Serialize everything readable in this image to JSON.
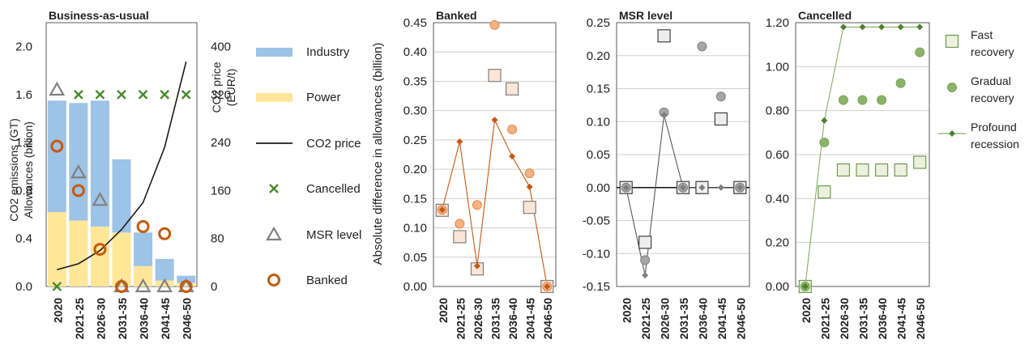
{
  "colors": {
    "industry": "#9dc3e6",
    "power": "#ffe699",
    "co2_price": "#1a1a1a",
    "cancelled": "#4a8a2e",
    "msr_level": "#808080",
    "banked": "#c55a11",
    "banked_light_fill": "#f8cbad",
    "banked_dark": "#c55a11",
    "msr_point": "#a6a6a6",
    "cancel_fast_fill": "#ebf1de",
    "cancel_gradual": "#8cb36a",
    "cancel_profound": "#4f7f2f",
    "grid": "#d0d0d0"
  },
  "chart_data": [
    {
      "type": "bar",
      "title": "Business-as-usual",
      "categories": [
        "2020",
        "2021-25",
        "2026-30",
        "2031-35",
        "2036-40",
        "2041-45",
        "2046-50"
      ],
      "ylabel": "CO2 emissions (GT)\nAllowances (billion)",
      "ylim": [
        0,
        2.2
      ],
      "yticks": [
        "0.0",
        "0.4",
        "0.8",
        "1.2",
        "1.6",
        "2.0"
      ],
      "y2label": "CO2 price (EUR/t)",
      "y2lim": [
        0,
        440
      ],
      "y2ticks": [
        "0",
        "80",
        "160",
        "240",
        "320",
        "400"
      ],
      "stacked": true,
      "series": [
        {
          "name": "Industry",
          "kind": "bar",
          "values": [
            0.93,
            0.98,
            1.05,
            0.61,
            0.28,
            0.18,
            0.06
          ]
        },
        {
          "name": "Power",
          "kind": "bar",
          "values": [
            0.62,
            0.55,
            0.5,
            0.45,
            0.17,
            0.05,
            0.03
          ]
        },
        {
          "name": "CO2 price",
          "kind": "line",
          "axis": "y2",
          "values": [
            28,
            38,
            60,
            95,
            140,
            232,
            375
          ]
        },
        {
          "name": "Cancelled",
          "kind": "marker",
          "values": [
            0.0,
            1.6,
            1.6,
            1.6,
            1.6,
            1.6,
            1.6
          ]
        },
        {
          "name": "MSR level",
          "kind": "marker",
          "values": [
            1.64,
            0.95,
            0.72,
            0.0,
            0.0,
            0.0,
            0.0
          ]
        },
        {
          "name": "Banked",
          "kind": "marker",
          "values": [
            1.17,
            0.8,
            0.31,
            0.0,
            0.5,
            0.44,
            0.0
          ]
        }
      ],
      "legend_position": "right"
    },
    {
      "type": "line",
      "title": "Banked",
      "categories": [
        "2020",
        "2021-25",
        "2026-30",
        "2031-35",
        "2036-40",
        "2041-45",
        "2046-50"
      ],
      "ylabel": "Absolute difference in allowances (billion)",
      "ylim": [
        0,
        0.45
      ],
      "yticks": [
        "0.00",
        "0.05",
        "0.10",
        "0.15",
        "0.20",
        "0.25",
        "0.30",
        "0.35",
        "0.40",
        "0.45"
      ],
      "series": [
        {
          "name": "Fast recovery",
          "values": [
            0.13,
            0.085,
            0.03,
            0.36,
            0.337,
            0.135,
            0.0
          ]
        },
        {
          "name": "Gradual recovery",
          "values": [
            0.131,
            0.107,
            0.139,
            0.446,
            0.268,
            0.193,
            0.0
          ]
        },
        {
          "name": "Profound recession",
          "values": [
            0.131,
            0.247,
            0.035,
            0.284,
            0.222,
            0.17,
            0.0
          ]
        }
      ]
    },
    {
      "type": "line",
      "title": "MSR level",
      "categories": [
        "2020",
        "2021-25",
        "2026-30",
        "2031-35",
        "2036-40",
        "2041-45",
        "2046-50"
      ],
      "ylim": [
        -0.15,
        0.25
      ],
      "yticks": [
        "-0.15",
        "-0.10",
        "-0.05",
        "0.00",
        "0.05",
        "0.10",
        "0.15",
        "0.20",
        "0.25"
      ],
      "series": [
        {
          "name": "Fast recovery",
          "values": [
            0.0,
            -0.083,
            0.23,
            0.0,
            0.0,
            0.104,
            0.0
          ]
        },
        {
          "name": "Gradual recovery",
          "values": [
            0.0,
            -0.11,
            0.114,
            0.0,
            0.214,
            0.138,
            0.0
          ]
        },
        {
          "name": "Profound recession",
          "values": [
            0.0,
            -0.133,
            0.11,
            0.0,
            0.0,
            0.0,
            0.0
          ]
        }
      ]
    },
    {
      "type": "line",
      "title": "Cancelled",
      "categories": [
        "2020",
        "2021-25",
        "2026-30",
        "2031-35",
        "2036-40",
        "2041-45",
        "2046-50"
      ],
      "ylim": [
        0,
        1.2
      ],
      "yticks": [
        "0.00",
        "0.20",
        "0.40",
        "0.60",
        "0.80",
        "1.00",
        "1.20"
      ],
      "series": [
        {
          "name": "Fast recovery",
          "values": [
            0.0,
            0.43,
            0.53,
            0.53,
            0.53,
            0.53,
            0.565
          ]
        },
        {
          "name": "Gradual recovery",
          "values": [
            0.0,
            0.655,
            0.848,
            0.848,
            0.848,
            0.925,
            1.065
          ]
        },
        {
          "name": "Profound recession",
          "values": [
            0.0,
            0.755,
            1.18,
            1.18,
            1.18,
            1.18,
            1.18
          ]
        }
      ],
      "legend": [
        "Fast\nrecovery",
        "Gradual\nrecovery",
        "Profound\nrecession"
      ],
      "legend_position": "right"
    }
  ]
}
